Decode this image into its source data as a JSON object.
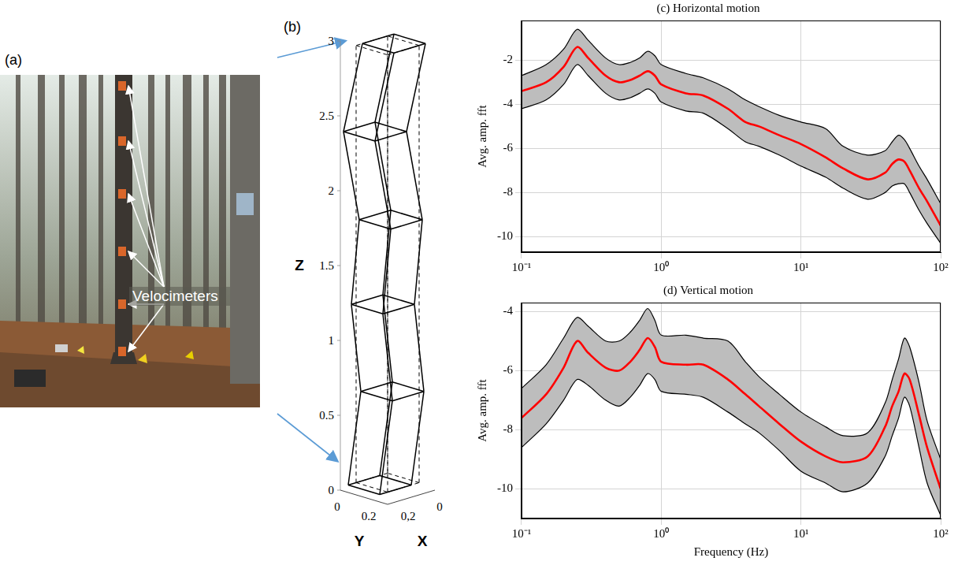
{
  "panel_a": {
    "label": "(a)",
    "annotation": "Velocimeters"
  },
  "panel_b": {
    "label": "(b)",
    "zlabel": "Z",
    "ylabel": "Y",
    "xlabel": "X",
    "zlim": [
      0,
      3
    ],
    "zticks": [
      0,
      0.5,
      1,
      1.5,
      2,
      2.5,
      3
    ],
    "xlim": [
      0,
      0.3
    ],
    "ylim": [
      0,
      0.3
    ],
    "yticks": [
      0,
      0.2
    ],
    "xticks": [
      {
        "value": 0.2,
        "label": "0,2"
      },
      0
    ],
    "levels": [
      0.05,
      0.65,
      1.25,
      1.8,
      2.42,
      2.97
    ],
    "offsets": [
      0.05,
      -0.03,
      0.03,
      -0.02,
      0.08,
      -0.04
    ],
    "section": [
      0.05,
      0.25
    ]
  },
  "chart_data": [
    {
      "type": "line",
      "title": "(c) Horizontal motion",
      "ylabel": "Avg. amp. fft",
      "log": "x",
      "grid": true,
      "x": [
        0.1,
        0.15,
        0.2,
        0.25,
        0.3,
        0.4,
        0.5,
        0.6,
        0.7,
        0.8,
        0.9,
        1,
        1.5,
        2,
        3,
        4,
        5,
        7,
        10,
        15,
        20,
        30,
        40,
        45,
        50,
        55,
        60,
        70,
        80,
        100
      ],
      "xlim": [
        0.1,
        100
      ],
      "xticks": [
        {
          "value": 0.1,
          "label": "10⁻¹"
        },
        {
          "value": 1,
          "label": "10⁰"
        },
        {
          "value": 10,
          "label": "10¹"
        },
        {
          "value": 100,
          "label": "10²"
        }
      ],
      "ylim": [
        -10.7,
        -0.2
      ],
      "yticks": [
        -10,
        -8,
        -6,
        -4,
        -2
      ],
      "series": [
        {
          "color": "#000000",
          "values": [
            -2.7,
            -2.2,
            -1.5,
            -0.6,
            -1.1,
            -1.9,
            -2.2,
            -2.1,
            -1.9,
            -1.6,
            -1.8,
            -2.2,
            -2.6,
            -2.8,
            -3.3,
            -3.8,
            -4.1,
            -4.5,
            -4.8,
            -5.1,
            -5.9,
            -6.3,
            -6.1,
            -5.7,
            -5.4,
            -5.6,
            -6.0,
            -6.8,
            -7.4,
            -8.5
          ]
        },
        {
          "color": "#000000",
          "values": [
            -4.2,
            -3.8,
            -3.1,
            -2.2,
            -2.7,
            -3.5,
            -3.8,
            -3.7,
            -3.5,
            -3.3,
            -3.5,
            -3.9,
            -4.3,
            -4.4,
            -5.1,
            -5.7,
            -5.9,
            -6.3,
            -6.8,
            -7.3,
            -7.8,
            -8.3,
            -8.0,
            -7.7,
            -7.6,
            -7.6,
            -8.0,
            -8.8,
            -9.4,
            -10.3
          ]
        },
        {
          "color": "#ff0000",
          "values": [
            -3.4,
            -3.0,
            -2.3,
            -1.4,
            -1.9,
            -2.7,
            -3.0,
            -2.9,
            -2.7,
            -2.5,
            -2.7,
            -3.1,
            -3.5,
            -3.6,
            -4.2,
            -4.8,
            -5.0,
            -5.4,
            -5.8,
            -6.4,
            -6.9,
            -7.4,
            -7.1,
            -6.7,
            -6.5,
            -6.6,
            -7.0,
            -7.8,
            -8.4,
            -9.5
          ]
        }
      ]
    },
    {
      "type": "line",
      "title": "(d) Vertical motion",
      "ylabel": "Avg. amp. fft",
      "xlabel": "Frequency (Hz)",
      "log": "x",
      "grid": true,
      "x": [
        0.1,
        0.15,
        0.2,
        0.25,
        0.3,
        0.4,
        0.5,
        0.6,
        0.7,
        0.8,
        0.9,
        1,
        1.5,
        2,
        3,
        4,
        5,
        7,
        10,
        15,
        20,
        30,
        40,
        45,
        50,
        55,
        60,
        70,
        80,
        100
      ],
      "xlim": [
        0.1,
        100
      ],
      "xticks": [
        {
          "value": 0.1,
          "label": "10⁻¹"
        },
        {
          "value": 1,
          "label": "10⁰"
        },
        {
          "value": 10,
          "label": "10¹"
        },
        {
          "value": 100,
          "label": "10²"
        }
      ],
      "ylim": [
        -11,
        -3.7
      ],
      "yticks": [
        -10,
        -8,
        -6,
        -4
      ],
      "series": [
        {
          "color": "#000000",
          "values": [
            -6.6,
            -5.8,
            -4.9,
            -4.2,
            -4.5,
            -5.0,
            -5.0,
            -4.7,
            -4.3,
            -3.9,
            -4.3,
            -4.8,
            -4.8,
            -4.9,
            -5.0,
            -5.7,
            -6.2,
            -6.8,
            -7.4,
            -7.9,
            -8.2,
            -8.1,
            -7.1,
            -6.3,
            -5.6,
            -4.9,
            -5.2,
            -6.4,
            -7.7,
            -9.0
          ]
        },
        {
          "color": "#000000",
          "values": [
            -8.6,
            -7.8,
            -7.0,
            -6.3,
            -6.5,
            -7.0,
            -7.2,
            -6.9,
            -6.5,
            -6.1,
            -6.3,
            -6.7,
            -6.8,
            -6.9,
            -7.4,
            -7.8,
            -8.1,
            -8.7,
            -9.4,
            -9.8,
            -10.1,
            -9.8,
            -8.9,
            -8.2,
            -7.6,
            -6.9,
            -7.2,
            -8.6,
            -9.8,
            -10.9
          ]
        },
        {
          "color": "#ff0000",
          "values": [
            -7.6,
            -6.8,
            -5.9,
            -5.0,
            -5.4,
            -5.9,
            -6.0,
            -5.7,
            -5.3,
            -4.9,
            -5.2,
            -5.7,
            -5.8,
            -5.8,
            -6.3,
            -6.8,
            -7.2,
            -7.8,
            -8.4,
            -8.9,
            -9.1,
            -8.9,
            -7.9,
            -7.2,
            -6.7,
            -6.1,
            -6.3,
            -7.5,
            -8.6,
            -10.0
          ]
        }
      ]
    }
  ]
}
